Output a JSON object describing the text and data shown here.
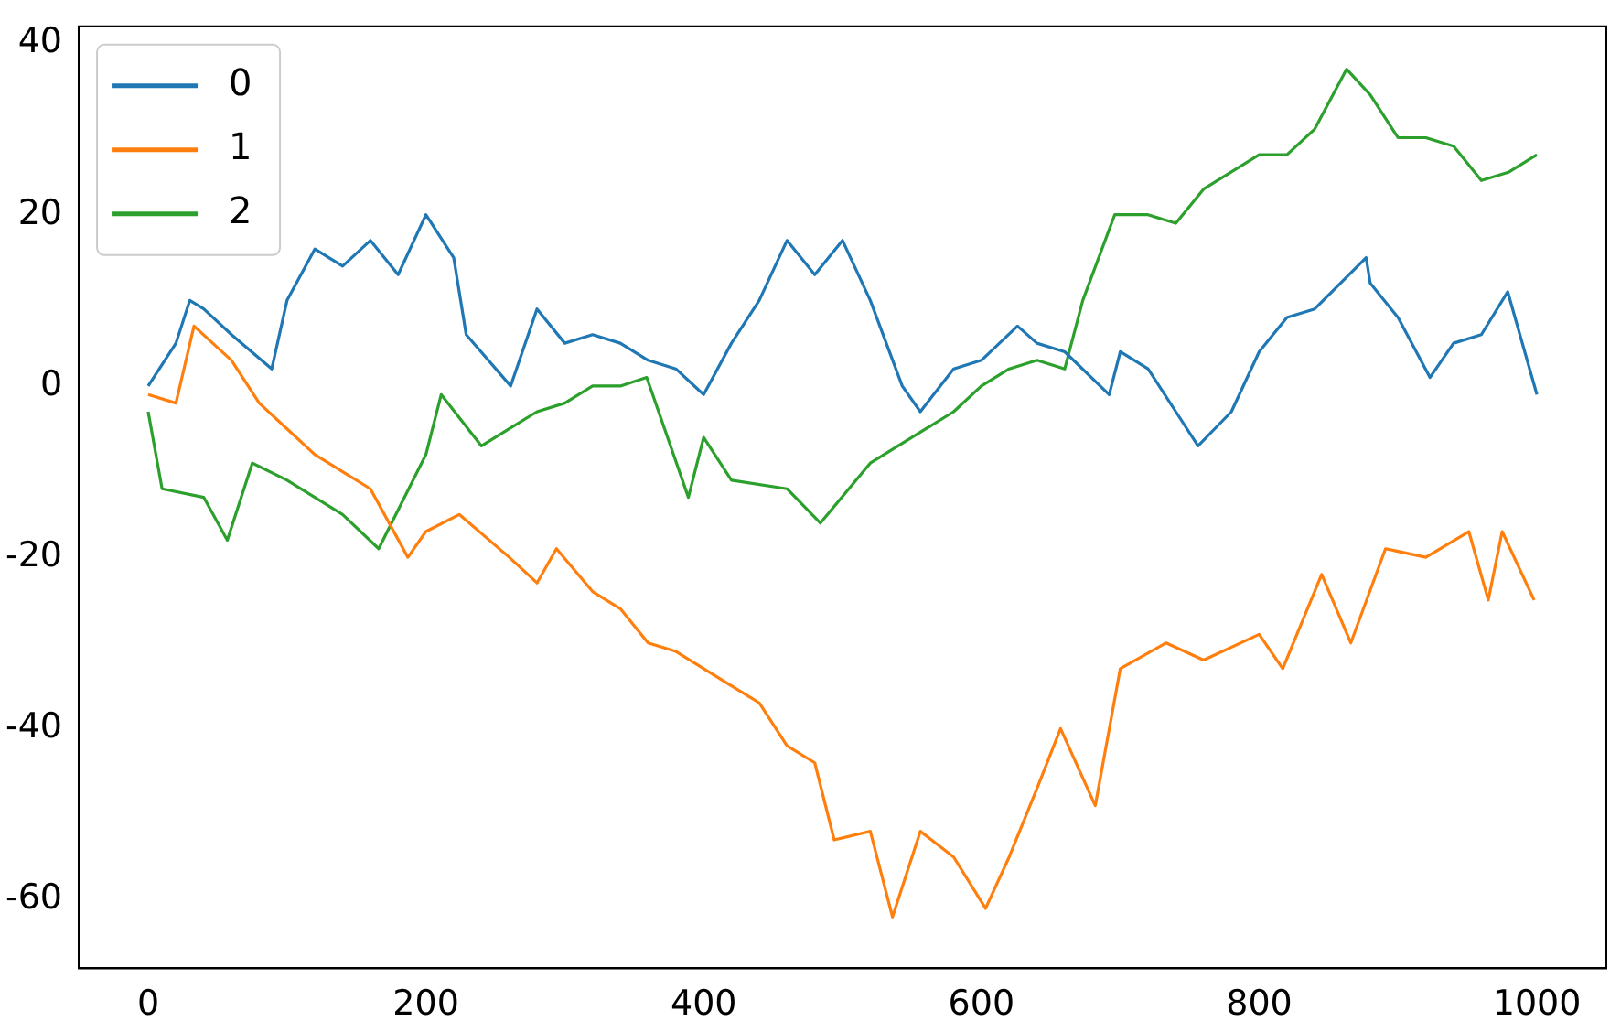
{
  "chart_data": {
    "type": "line",
    "legend": "top left",
    "grid": false,
    "marker": "none",
    "line_style": "solid",
    "xlim": [
      -50,
      1050
    ],
    "ylim": [
      -68,
      42
    ],
    "xticks": [
      0,
      200,
      400,
      600,
      800,
      1000
    ],
    "yticks": [
      -60,
      -40,
      -20,
      0,
      20,
      40
    ],
    "series": [
      {
        "name": "0",
        "color": "#1f77b4",
        "x": [
          0,
          20,
          30,
          40,
          60,
          89,
          100,
          120,
          140,
          160,
          180,
          200,
          220,
          229,
          261,
          280,
          300,
          320,
          340,
          360,
          380,
          400,
          420,
          440,
          460,
          480,
          500,
          520,
          543,
          556,
          580,
          600,
          626,
          640,
          660,
          692,
          700,
          720,
          740,
          756,
          780,
          800,
          820,
          840,
          877,
          880,
          900,
          923,
          940,
          960,
          979,
          1000
        ],
        "values": [
          0,
          5,
          10,
          9,
          6,
          2,
          10,
          16,
          14,
          17,
          13,
          20,
          15,
          6,
          0,
          9,
          5,
          6,
          5,
          3,
          2,
          -1,
          5,
          10,
          17,
          13,
          17,
          10,
          0,
          -3,
          2,
          3,
          7,
          5,
          4,
          -1,
          4,
          2,
          -3,
          -7,
          -3,
          4,
          8,
          9,
          15,
          12,
          8,
          1,
          5,
          6,
          11,
          -1
        ]
      },
      {
        "name": "1",
        "color": "#ff7f0e",
        "x": [
          0,
          20,
          33,
          60,
          80,
          100,
          120,
          140,
          160,
          187,
          200,
          224,
          260,
          280,
          294,
          320,
          340,
          360,
          380,
          400,
          420,
          440,
          460,
          480,
          494,
          520,
          536,
          556,
          580,
          603,
          620,
          640,
          657,
          682,
          700,
          733,
          760,
          800,
          817,
          845,
          866,
          891,
          920,
          951,
          965,
          975,
          998
        ],
        "values": [
          -1,
          -2,
          7,
          3,
          -2,
          -5,
          -8,
          -10,
          -12,
          -20,
          -17,
          -15,
          -20,
          -23,
          -19,
          -24,
          -26,
          -30,
          -31,
          -33,
          -35,
          -37,
          -42,
          -44,
          -53,
          -52,
          -62,
          -52,
          -55,
          -61,
          -55,
          -47,
          -40,
          -49,
          -33,
          -30,
          -32,
          -29,
          -33,
          -22,
          -30,
          -19,
          -20,
          -17,
          -25,
          -17,
          -25
        ]
      },
      {
        "name": "2",
        "color": "#2ca02c",
        "x": [
          0,
          10,
          40,
          57,
          75,
          100,
          120,
          140,
          166,
          200,
          211,
          240,
          260,
          280,
          300,
          320,
          340,
          359,
          389,
          400,
          420,
          460,
          484,
          520,
          540,
          560,
          580,
          600,
          620,
          640,
          660,
          673,
          696,
          720,
          740,
          760,
          780,
          800,
          820,
          840,
          863,
          880,
          900,
          920,
          940,
          960,
          980,
          1000
        ],
        "values": [
          -3,
          -12,
          -13,
          -18,
          -9,
          -11,
          -13,
          -15,
          -19,
          -8,
          -1,
          -7,
          -5,
          -3,
          -2,
          0,
          0,
          1,
          -13,
          -6,
          -11,
          -12,
          -16,
          -9,
          -7,
          -5,
          -3,
          0,
          2,
          3,
          2,
          10,
          20,
          20,
          19,
          23,
          25,
          27,
          27,
          30,
          37,
          34,
          29,
          29,
          28,
          24,
          25,
          27
        ]
      }
    ]
  }
}
